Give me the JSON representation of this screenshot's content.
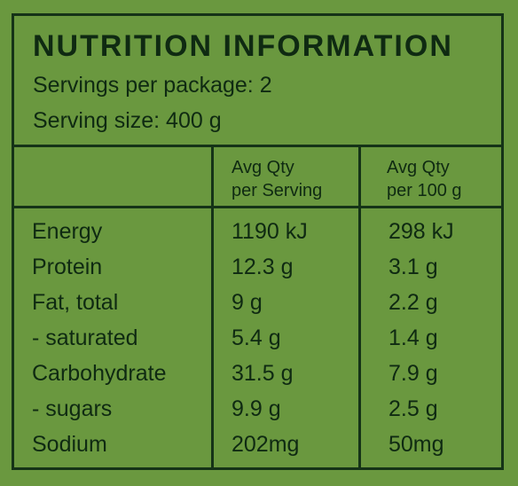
{
  "title": "NUTRITION INFORMATION",
  "servings": "Servings per package: 2",
  "serving_size": "Serving size: 400 g",
  "columns": {
    "per_serving": [
      "Avg Qty",
      "per Serving"
    ],
    "per_100g": [
      "Avg Qty",
      "per 100 g"
    ]
  },
  "rows": [
    {
      "name": "Energy",
      "serving": "1190 kJ",
      "per100": "298 kJ"
    },
    {
      "name": "Protein",
      "serving": "12.3 g",
      "per100": "3.1 g"
    },
    {
      "name": "Fat, total",
      "serving": "9 g",
      "per100": "2.2 g"
    },
    {
      "name": "- saturated",
      "serving": "5.4 g",
      "per100": "1.4 g"
    },
    {
      "name": "Carbohydrate",
      "serving": "31.5 g",
      "per100": "7.9 g"
    },
    {
      "name": "- sugars",
      "serving": "9.9 g",
      "per100": "2.5 g"
    },
    {
      "name": "Sodium",
      "serving": "202mg",
      "per100": "50mg"
    }
  ]
}
